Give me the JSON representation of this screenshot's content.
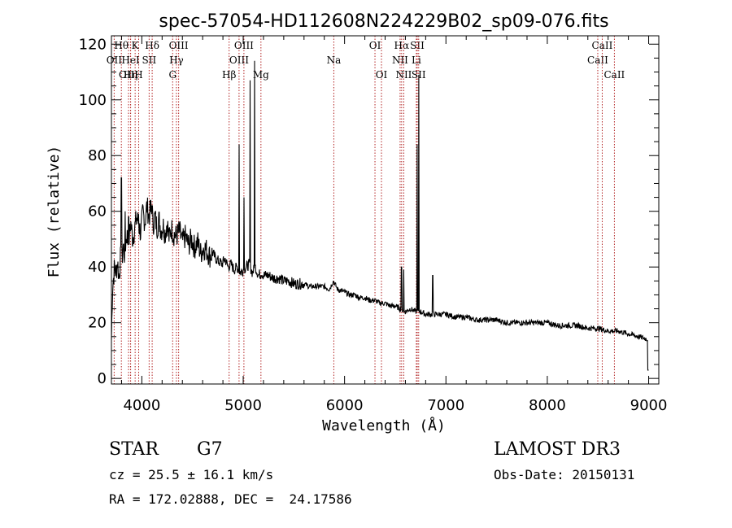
{
  "chart_data": {
    "type": "line",
    "title": "spec-57054-HD112608N224229B02_sp09-076.fits",
    "xlabel": "Wavelength (Å)",
    "ylabel": "Flux (relative)",
    "xlim": [
      3700,
      9100
    ],
    "ylim": [
      -2,
      123
    ],
    "xticks": [
      4000,
      5000,
      6000,
      7000,
      8000,
      9000
    ],
    "yticks": [
      0,
      20,
      40,
      60,
      80,
      100,
      120
    ],
    "grid": false,
    "line_color": "#000000",
    "marker_color": "#b22222",
    "series": [
      {
        "name": "flux",
        "x": [
          3700,
          3710,
          3720,
          3730,
          3745,
          3760,
          3775,
          3790,
          3800,
          3815,
          3830,
          3850,
          3870,
          3890,
          3910,
          3930,
          3950,
          3970,
          3990,
          4010,
          4030,
          4050,
          4070,
          4090,
          4110,
          4130,
          4150,
          4170,
          4190,
          4210,
          4230,
          4250,
          4270,
          4290,
          4310,
          4340,
          4370,
          4400,
          4430,
          4460,
          4490,
          4520,
          4550,
          4580,
          4610,
          4640,
          4670,
          4700,
          4730,
          4760,
          4790,
          4820,
          4850,
          4880,
          4910,
          4940,
          4970,
          5000,
          5030,
          5060,
          5090,
          5120,
          5150,
          5180,
          5200,
          5250,
          5300,
          5350,
          5400,
          5450,
          5500,
          5550,
          5600,
          5650,
          5700,
          5750,
          5800,
          5850,
          5890,
          5930,
          6000,
          6050,
          6100,
          6150,
          6200,
          6250,
          6300,
          6350,
          6400,
          6450,
          6500,
          6550,
          6600,
          6650,
          6700,
          6750,
          6800,
          6850,
          6900,
          6950,
          7000,
          7100,
          7200,
          7300,
          7400,
          7500,
          7600,
          7700,
          7800,
          7900,
          8000,
          8100,
          8200,
          8300,
          8400,
          8500,
          8600,
          8700,
          8800,
          8900,
          9000
        ],
        "values": [
          14,
          32,
          36,
          40,
          38,
          42,
          36,
          44,
          40,
          48,
          44,
          52,
          48,
          56,
          50,
          54,
          58,
          55,
          52,
          60,
          56,
          62,
          58,
          61,
          55,
          58,
          54,
          57,
          53,
          55,
          52,
          56,
          50,
          54,
          52,
          51,
          53,
          49,
          51,
          48,
          50,
          47,
          49,
          45,
          47,
          46,
          44,
          45,
          43,
          42,
          41,
          43,
          40,
          41,
          39,
          40,
          38,
          39,
          40,
          41,
          38,
          40,
          37,
          38,
          37,
          37,
          36,
          36,
          35,
          35,
          34,
          34,
          34,
          33,
          33,
          33,
          33,
          32,
          35,
          32,
          31,
          30,
          30,
          29,
          29,
          28,
          28,
          27,
          27,
          26,
          26,
          25,
          24,
          25,
          24,
          24,
          23,
          23,
          23,
          23,
          23,
          22,
          22,
          21,
          21,
          21,
          20,
          20,
          20,
          20,
          20,
          19,
          19,
          19,
          18,
          18,
          17,
          17,
          16,
          15,
          14
        ]
      },
      {
        "name": "emission-spikes",
        "x": [
          3728,
          3798,
          3835,
          3870,
          3968,
          4102,
          4959,
          5007,
          5068,
          5111,
          6562,
          6585,
          6716,
          6731,
          6870
        ],
        "values": [
          27,
          72,
          60,
          58,
          59,
          62,
          84,
          65,
          107,
          114,
          40,
          39,
          84,
          109,
          37
        ]
      }
    ],
    "lines": [
      {
        "name": "OII",
        "wavelength": 3727,
        "row": 1
      },
      {
        "name": "Hθ",
        "wavelength": 3798,
        "row": 0
      },
      {
        "name": "OIII",
        "wavelength": 3869,
        "row": 2
      },
      {
        "name": "Hη",
        "wavelength": 3889,
        "row": 2
      },
      {
        "name": "HeI",
        "wavelength": 3889,
        "row": 1
      },
      {
        "name": "K",
        "wavelength": 3934,
        "row": 0
      },
      {
        "name": "SII",
        "wavelength": 4072,
        "row": 1
      },
      {
        "name": "H",
        "wavelength": 3969,
        "row": 2
      },
      {
        "name": "Hδ",
        "wavelength": 4102,
        "row": 0
      },
      {
        "name": "G",
        "wavelength": 4304,
        "row": 2
      },
      {
        "name": "Hγ",
        "wavelength": 4341,
        "row": 1
      },
      {
        "name": "OIII",
        "wavelength": 4363,
        "row": 0
      },
      {
        "name": "Hβ",
        "wavelength": 4861,
        "row": 2
      },
      {
        "name": "OIII",
        "wavelength": 4959,
        "row": 1
      },
      {
        "name": "OIII",
        "wavelength": 5007,
        "row": 0
      },
      {
        "name": "Mg",
        "wavelength": 5175,
        "row": 2
      },
      {
        "name": "Na",
        "wavelength": 5894,
        "row": 1
      },
      {
        "name": "OI",
        "wavelength": 6300,
        "row": 0
      },
      {
        "name": "OI",
        "wavelength": 6364,
        "row": 2
      },
      {
        "name": "NII",
        "wavelength": 6548,
        "row": 1
      },
      {
        "name": "Hα",
        "wavelength": 6563,
        "row": 0
      },
      {
        "name": "NII",
        "wavelength": 6584,
        "row": 2
      },
      {
        "name": "Li",
        "wavelength": 6708,
        "row": 1
      },
      {
        "name": "SII",
        "wavelength": 6717,
        "row": 0
      },
      {
        "name": "SII",
        "wavelength": 6731,
        "row": 2
      },
      {
        "name": "CaII",
        "wavelength": 8498,
        "row": 1
      },
      {
        "name": "CaII",
        "wavelength": 8542,
        "row": 0
      },
      {
        "name": "CaII",
        "wavelength": 8662,
        "row": 2
      }
    ]
  },
  "info": {
    "class_label": "STAR",
    "subclass": "G7",
    "survey": "LAMOST DR3",
    "cz": "cz = 25.5 ± 16.1 km/s",
    "obs_date": "Obs-Date: 20150131",
    "coords": "RA = 172.02888, DEC =  24.17586"
  }
}
